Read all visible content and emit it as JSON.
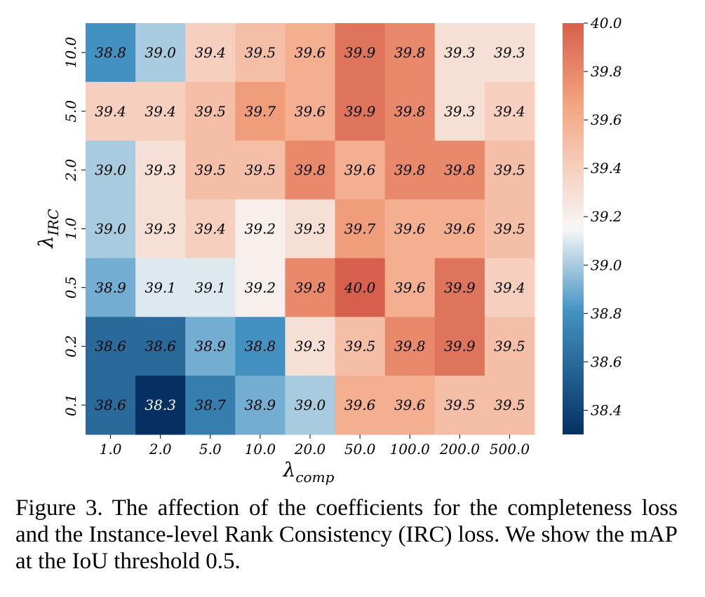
{
  "chart_data": {
    "type": "heatmap",
    "x_tick_labels": [
      "1.0",
      "2.0",
      "5.0",
      "10.0",
      "20.0",
      "50.0",
      "100.0",
      "200.0",
      "500.0"
    ],
    "y_tick_labels": [
      "10.0",
      "5.0",
      "2.0",
      "1.0",
      "0.5",
      "0.2",
      "0.1"
    ],
    "values": [
      [
        38.8,
        39.0,
        39.4,
        39.5,
        39.6,
        39.9,
        39.8,
        39.3,
        39.3
      ],
      [
        39.4,
        39.4,
        39.5,
        39.7,
        39.6,
        39.9,
        39.8,
        39.3,
        39.4
      ],
      [
        39.0,
        39.3,
        39.5,
        39.5,
        39.8,
        39.6,
        39.8,
        39.8,
        39.5
      ],
      [
        39.0,
        39.3,
        39.4,
        39.2,
        39.3,
        39.7,
        39.6,
        39.6,
        39.5
      ],
      [
        38.9,
        39.1,
        39.1,
        39.2,
        39.8,
        40.0,
        39.6,
        39.9,
        39.4
      ],
      [
        38.6,
        38.6,
        38.9,
        38.8,
        39.3,
        39.5,
        39.8,
        39.9,
        39.5
      ],
      [
        38.6,
        38.3,
        38.7,
        38.9,
        39.0,
        39.6,
        39.6,
        39.5,
        39.5
      ]
    ],
    "xlabel": {
      "base": "λ",
      "sub": "comp"
    },
    "ylabel": {
      "base": "λ",
      "sub": "IRC"
    },
    "colorbar": {
      "vmin": 38.3,
      "vmax": 40.0,
      "ticks": [
        40.0,
        39.8,
        39.6,
        39.4,
        39.2,
        39.0,
        38.8,
        38.6,
        38.4
      ],
      "tick_labels": [
        "40.0",
        "39.8",
        "39.6",
        "39.4",
        "39.2",
        "39.0",
        "38.8",
        "38.6",
        "38.4"
      ],
      "colormap": "RdBu_r"
    },
    "colors": {
      "low": "#053061",
      "mid_low": "#4393c3",
      "mid": "#f7f7f7",
      "mid_high": "#f4a582",
      "high": "#d6604d"
    }
  },
  "caption": "Figure 3.  The affection of the coefficients for the completeness loss and the Instance-level Rank Consistency (IRC) loss. We show the mAP at the IoU threshold 0.5."
}
